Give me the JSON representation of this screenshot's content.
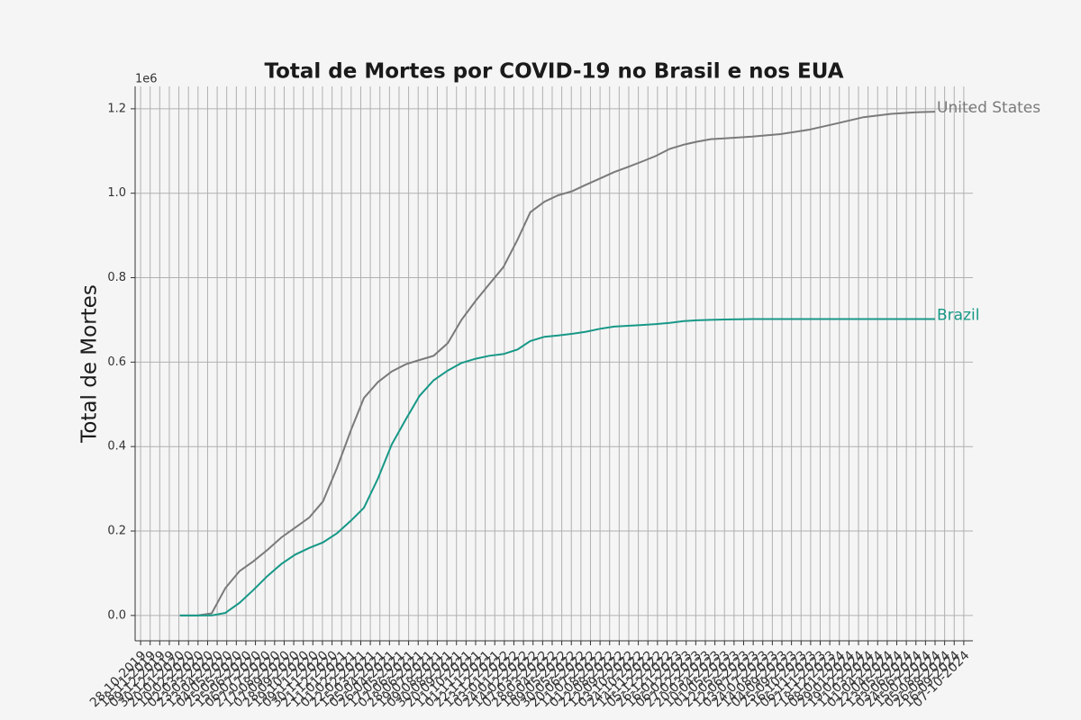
{
  "chart_data": {
    "type": "line",
    "title": "Total de Mortes por COVID-19 no Brasil e nos EUA",
    "y_label": "Total de Mortes",
    "y_offset_label": "1e6",
    "x": [
      "22-01-2020",
      "01-03-2020",
      "01-04-2020",
      "01-05-2020",
      "01-06-2020",
      "01-07-2020",
      "01-08-2020",
      "01-09-2020",
      "01-10-2020",
      "01-11-2020",
      "01-12-2020",
      "01-01-2021",
      "01-02-2021",
      "01-03-2021",
      "01-04-2021",
      "01-05-2021",
      "01-06-2021",
      "01-07-2021",
      "01-08-2021",
      "01-09-2021",
      "01-10-2021",
      "01-11-2021",
      "01-12-2021",
      "01-01-2022",
      "01-02-2022",
      "01-03-2022",
      "01-04-2022",
      "01-05-2022",
      "01-06-2022",
      "01-07-2022",
      "01-08-2022",
      "01-09-2022",
      "01-10-2022",
      "01-11-2022",
      "01-12-2022",
      "01-01-2023",
      "01-02-2023",
      "01-03-2023",
      "01-04-2023",
      "01-05-2023",
      "01-07-2023",
      "01-09-2023",
      "01-11-2023",
      "01-01-2024",
      "01-03-2024",
      "01-05-2024",
      "01-07-2024",
      "05-08-2024"
    ],
    "series": [
      {
        "name": "United States",
        "color": "#7a7a7a",
        "values": [
          0,
          0,
          5000,
          65000,
          105000,
          128000,
          155000,
          185000,
          208000,
          232000,
          270000,
          350000,
          440000,
          515000,
          553000,
          578000,
          595000,
          605000,
          615000,
          645000,
          700000,
          745000,
          785000,
          825000,
          890000,
          955000,
          980000,
          995000,
          1005000,
          1020000,
          1035000,
          1050000,
          1062000,
          1075000,
          1088000,
          1105000,
          1115000,
          1122000,
          1128000,
          1130000,
          1134000,
          1140000,
          1150000,
          1165000,
          1180000,
          1188000,
          1192000,
          1193000
        ]
      },
      {
        "name": "Brazil",
        "color": "#179887",
        "values": [
          0,
          0,
          200,
          6000,
          30000,
          60000,
          93000,
          122000,
          144000,
          160000,
          173000,
          195000,
          225000,
          255000,
          325000,
          405000,
          465000,
          520000,
          557000,
          580000,
          598000,
          608000,
          615000,
          619000,
          630000,
          650000,
          660000,
          663000,
          667000,
          672000,
          679000,
          684000,
          686000,
          688000,
          690000,
          693000,
          697000,
          699000,
          700000,
          701000,
          702000,
          702000,
          702000,
          702000,
          702000,
          702000,
          702000,
          702000
        ]
      }
    ],
    "xlim": [
      "16-10-2019",
      "27-10-2024"
    ],
    "xticks": [
      "28-10-2019",
      "18-11-2019",
      "09-12-2019",
      "30-12-2019",
      "20-01-2020",
      "10-02-2020",
      "02-03-2020",
      "23-03-2020",
      "13-04-2020",
      "04-05-2020",
      "25-05-2020",
      "15-06-2020",
      "06-07-2020",
      "27-07-2020",
      "17-08-2020",
      "07-09-2020",
      "28-09-2020",
      "19-10-2020",
      "09-11-2020",
      "30-11-2020",
      "21-12-2020",
      "11-01-2021",
      "01-02-2021",
      "22-02-2021",
      "15-03-2021",
      "05-04-2021",
      "26-04-2021",
      "17-05-2021",
      "07-06-2021",
      "28-06-2021",
      "19-07-2021",
      "09-08-2021",
      "30-08-2021",
      "20-09-2021",
      "11-10-2021",
      "01-11-2021",
      "22-11-2021",
      "13-12-2021",
      "03-01-2022",
      "24-01-2022",
      "14-02-2022",
      "07-03-2022",
      "28-03-2022",
      "18-04-2022",
      "09-05-2022",
      "30-05-2022",
      "20-06-2022",
      "11-07-2022",
      "01-08-2022",
      "22-08-2022",
      "12-09-2022",
      "03-10-2022",
      "24-10-2022",
      "14-11-2022",
      "05-12-2022",
      "26-12-2022",
      "16-01-2023",
      "06-02-2023",
      "27-02-2023",
      "20-03-2023",
      "10-04-2023",
      "01-05-2023",
      "22-05-2023",
      "12-06-2023",
      "03-07-2023",
      "24-07-2023",
      "14-08-2023",
      "04-09-2023",
      "25-09-2023",
      "16-10-2023",
      "06-11-2023",
      "27-11-2023",
      "18-12-2023",
      "08-01-2024",
      "29-01-2024",
      "19-02-2024",
      "11-03-2024",
      "01-04-2024",
      "22-04-2024",
      "13-05-2024",
      "03-06-2024",
      "24-06-2024",
      "15-07-2024",
      "05-08-2024",
      "26-08-2024",
      "16-09-2024",
      "07-10-2024"
    ],
    "ylim": [
      -60000,
      1253000
    ],
    "yticks": [
      {
        "value": 0,
        "label": "0.0"
      },
      {
        "value": 200000,
        "label": "0.2"
      },
      {
        "value": 400000,
        "label": "0.4"
      },
      {
        "value": 600000,
        "label": "0.6"
      },
      {
        "value": 800000,
        "label": "0.8"
      },
      {
        "value": 1000000,
        "label": "1.0"
      },
      {
        "value": 1200000,
        "label": "1.2"
      }
    ],
    "grid": true
  }
}
